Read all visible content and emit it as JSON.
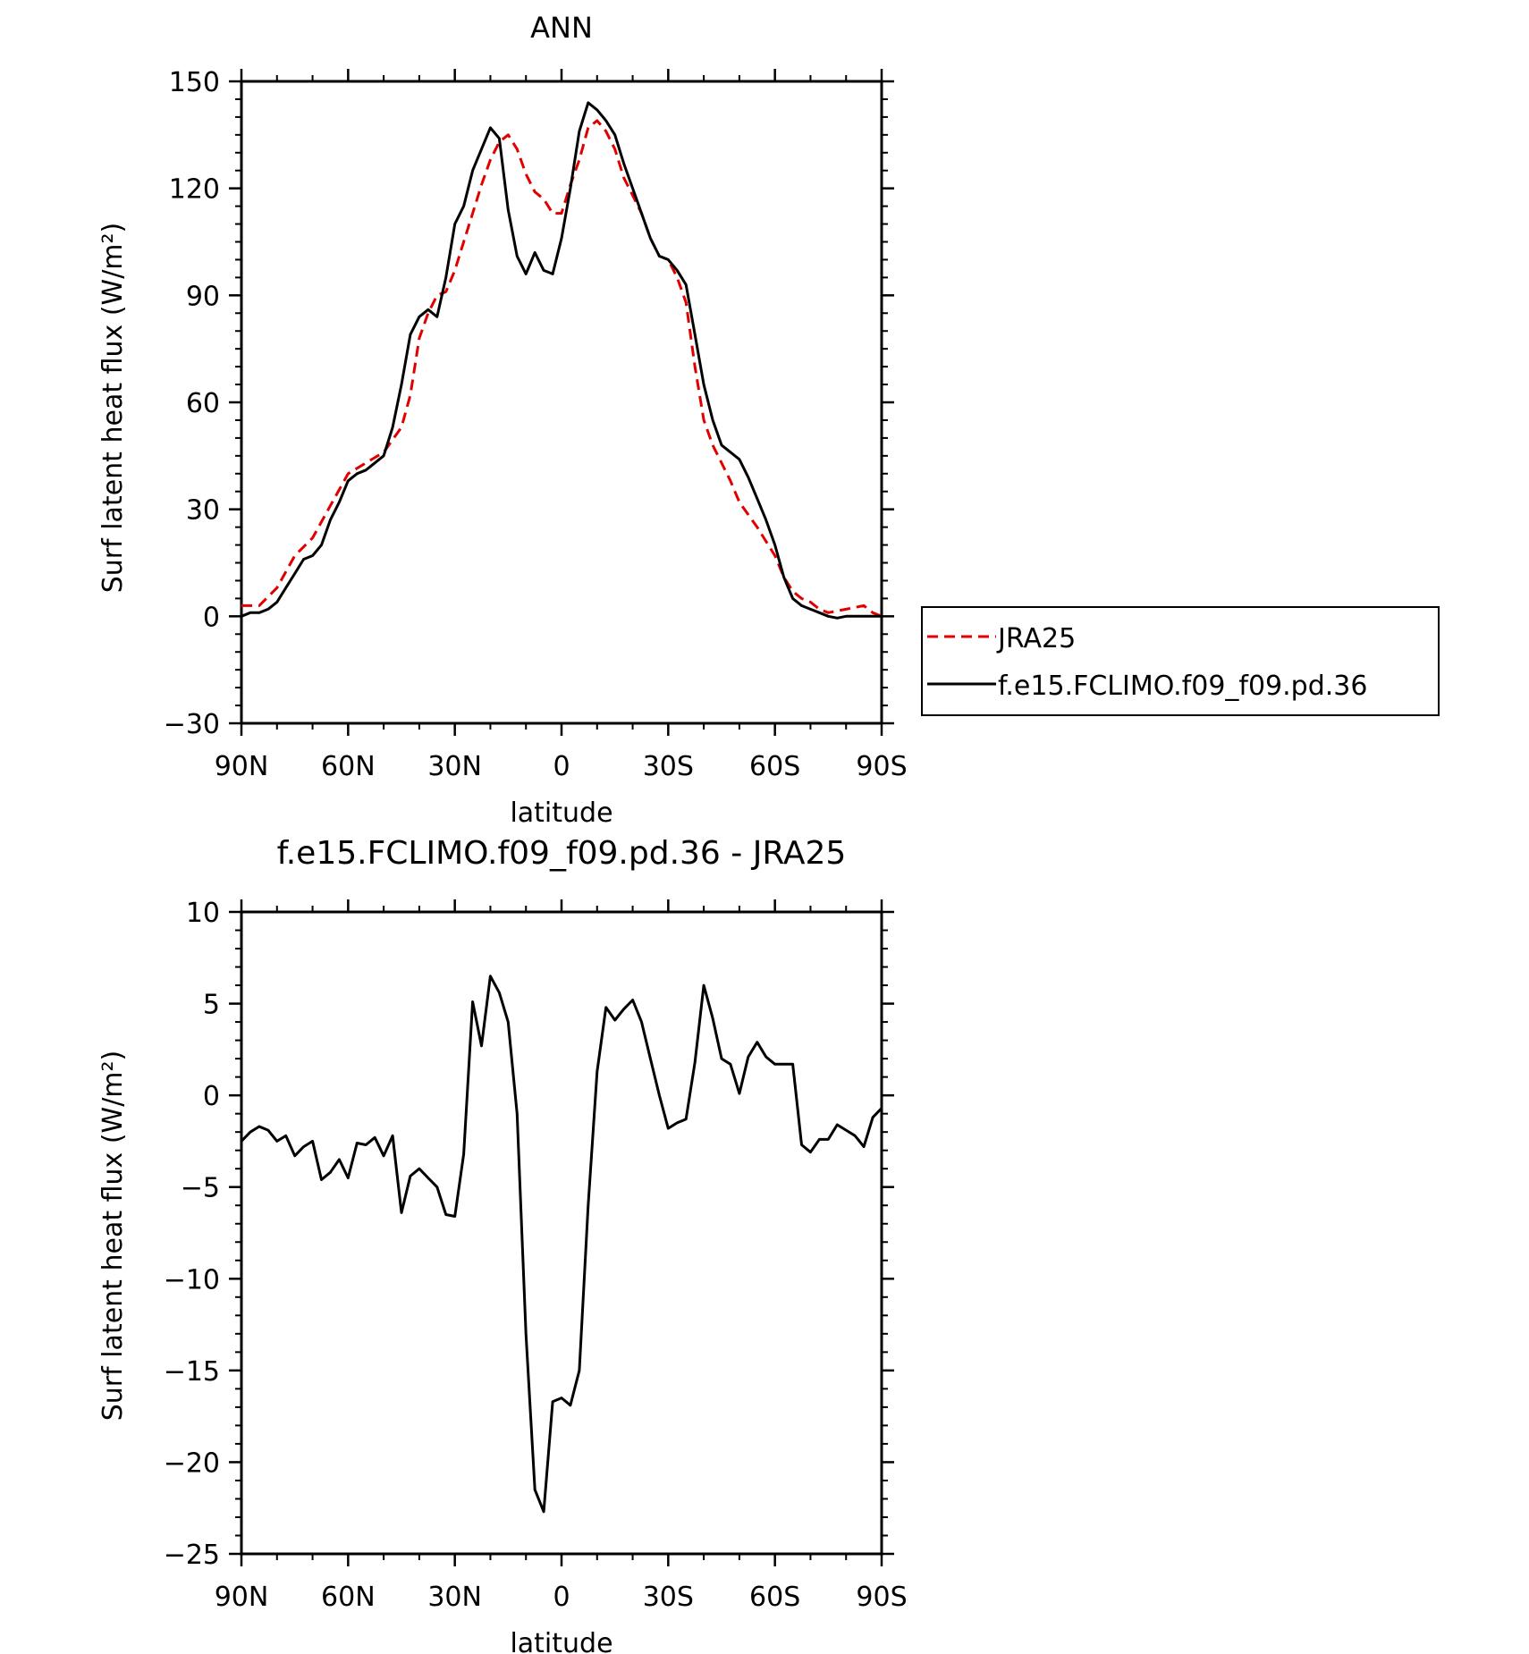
{
  "chart_data": [
    {
      "type": "line",
      "title": "ANN",
      "xlabel": "latitude",
      "ylabel": "Surf latent heat flux (W/m²)",
      "xlim": [
        90,
        -90
      ],
      "ylim": [
        -30,
        150
      ],
      "yticks": [
        -30,
        0,
        30,
        60,
        90,
        120,
        150
      ],
      "xticks": [
        {
          "value": 90,
          "label": "90N"
        },
        {
          "value": 60,
          "label": "60N"
        },
        {
          "value": 30,
          "label": "30N"
        },
        {
          "value": 0,
          "label": "0"
        },
        {
          "value": -30,
          "label": "30S"
        },
        {
          "value": -60,
          "label": "60S"
        },
        {
          "value": -90,
          "label": "90S"
        }
      ],
      "legend": "right",
      "series": [
        {
          "name": "JRA25",
          "color": "#e00000",
          "style": "dashed",
          "x": [
            90,
            85,
            80,
            75,
            70,
            65,
            60,
            55,
            50,
            45,
            42.5,
            40,
            37.5,
            35,
            32.5,
            30,
            27.5,
            25,
            22.5,
            20,
            17.5,
            15,
            12.5,
            10,
            7.5,
            5,
            2.5,
            0,
            -2.5,
            -5,
            -7.5,
            -10,
            -12.5,
            -15,
            -17.5,
            -20,
            -22.5,
            -25,
            -27.5,
            -30,
            -32.5,
            -35,
            -37.5,
            -40,
            -42.5,
            -45,
            -47.5,
            -50,
            -55,
            -60,
            -62.5,
            -65,
            -67.5,
            -70,
            -72.5,
            -75,
            -80,
            -85,
            -87.5,
            -90
          ],
          "y": [
            3,
            3,
            8,
            17,
            22,
            31,
            40,
            43,
            46,
            53,
            62,
            78,
            85,
            90,
            91,
            97,
            105,
            113,
            121,
            128,
            133,
            135,
            131,
            124,
            119,
            117,
            113,
            113,
            121,
            128,
            137,
            139,
            136,
            131,
            123,
            118,
            113,
            106,
            101,
            100,
            95,
            88,
            70,
            55,
            48,
            43,
            38,
            32,
            25,
            17,
            11,
            7,
            5,
            4,
            2,
            1,
            2,
            3,
            1,
            0
          ]
        },
        {
          "name": "f.e15.FCLIMO.f09_f09.pd.36",
          "color": "#000000",
          "style": "solid",
          "x": [
            90,
            87.5,
            85,
            82.5,
            80,
            77.5,
            75,
            72.5,
            70,
            67.5,
            65,
            62.5,
            60,
            57.5,
            55,
            52.5,
            50,
            47.5,
            45,
            42.5,
            40,
            37.5,
            35,
            32.5,
            30,
            27.5,
            25,
            22.5,
            20,
            17.5,
            15,
            12.5,
            10,
            7.5,
            5,
            2.5,
            0,
            -2.5,
            -5,
            -7.5,
            -10,
            -12.5,
            -15,
            -17.5,
            -20,
            -22.5,
            -25,
            -27.5,
            -30,
            -32.5,
            -35,
            -37.5,
            -40,
            -42.5,
            -45,
            -47.5,
            -50,
            -52.5,
            -55,
            -57.5,
            -60,
            -62.5,
            -65,
            -67.5,
            -70,
            -72.5,
            -75,
            -77.5,
            -80,
            -82.5,
            -85,
            -87.5,
            -90
          ],
          "y": [
            0,
            1,
            1,
            2,
            4,
            8,
            12,
            16,
            17,
            20,
            27,
            32,
            38,
            40,
            41,
            43,
            45,
            53,
            65,
            79,
            84,
            86,
            84,
            95,
            110,
            115,
            125,
            131,
            137,
            134,
            114,
            101,
            96,
            102,
            97,
            96,
            106,
            120,
            136,
            144,
            142,
            139,
            135,
            127,
            120,
            113,
            106,
            101,
            100,
            97,
            93,
            79,
            65,
            55,
            48,
            46,
            44,
            39,
            33,
            27,
            20,
            11,
            5,
            3,
            2,
            1,
            0,
            -0.5,
            0,
            0,
            0,
            0,
            0
          ]
        }
      ]
    },
    {
      "type": "line",
      "title": "f.e15.FCLIMO.f09_f09.pd.36 - JRA25",
      "xlabel": "latitude",
      "ylabel": "Surf latent heat flux (W/m²)",
      "xlim": [
        90,
        -90
      ],
      "ylim": [
        -25,
        10
      ],
      "yticks": [
        -25,
        -20,
        -15,
        -10,
        -5,
        0,
        5,
        10
      ],
      "xticks": [
        {
          "value": 90,
          "label": "90N"
        },
        {
          "value": 60,
          "label": "60N"
        },
        {
          "value": 30,
          "label": "30N"
        },
        {
          "value": 0,
          "label": "0"
        },
        {
          "value": -30,
          "label": "30S"
        },
        {
          "value": -60,
          "label": "60S"
        },
        {
          "value": -90,
          "label": "90S"
        }
      ],
      "series": [
        {
          "color": "#000000",
          "style": "solid",
          "x": [
            90,
            87.5,
            85,
            82.5,
            80,
            77.5,
            75,
            72.5,
            70,
            67.5,
            65,
            62.5,
            60,
            57.5,
            55,
            52.5,
            50,
            47.5,
            45,
            42.5,
            40,
            37.5,
            35,
            32.5,
            30,
            27.5,
            25,
            22.5,
            20,
            17.5,
            15,
            12.5,
            10,
            7.5,
            5,
            2.5,
            0,
            -2.5,
            -5,
            -7.5,
            -10,
            -12.5,
            -15,
            -17.5,
            -20,
            -22.5,
            -25,
            -27.5,
            -30,
            -32.5,
            -35,
            -37.5,
            -40,
            -42.5,
            -45,
            -47.5,
            -50,
            -52.5,
            -55,
            -57.5,
            -60,
            -62.5,
            -65,
            -67.5,
            -70,
            -72.5,
            -75,
            -77.5,
            -80,
            -82.5,
            -85,
            -87.5,
            -90
          ],
          "y": [
            -2.5,
            -2.0,
            -1.7,
            -1.9,
            -2.5,
            -2.2,
            -3.3,
            -2.8,
            -2.5,
            -4.6,
            -4.2,
            -3.5,
            -4.5,
            -2.6,
            -2.7,
            -2.3,
            -3.3,
            -2.2,
            -6.4,
            -4.4,
            -4.0,
            -4.5,
            -5.0,
            -6.5,
            -6.6,
            -3.2,
            5.1,
            2.7,
            6.5,
            5.6,
            4.0,
            -1.0,
            -13.0,
            -21.5,
            -22.7,
            -16.7,
            -16.5,
            -16.9,
            -15.0,
            -6.0,
            1.3,
            4.8,
            4.1,
            4.7,
            5.2,
            4.0,
            2.0,
            0.0,
            -1.8,
            -1.5,
            -1.3,
            1.8,
            6.0,
            4.2,
            2.0,
            1.7,
            0.1,
            2.1,
            2.9,
            2.1,
            1.7,
            1.7,
            1.7,
            -2.7,
            -3.1,
            -2.4,
            -2.4,
            -1.6,
            -1.9,
            -2.2,
            -2.8,
            -1.2,
            -0.7
          ]
        }
      ]
    }
  ]
}
